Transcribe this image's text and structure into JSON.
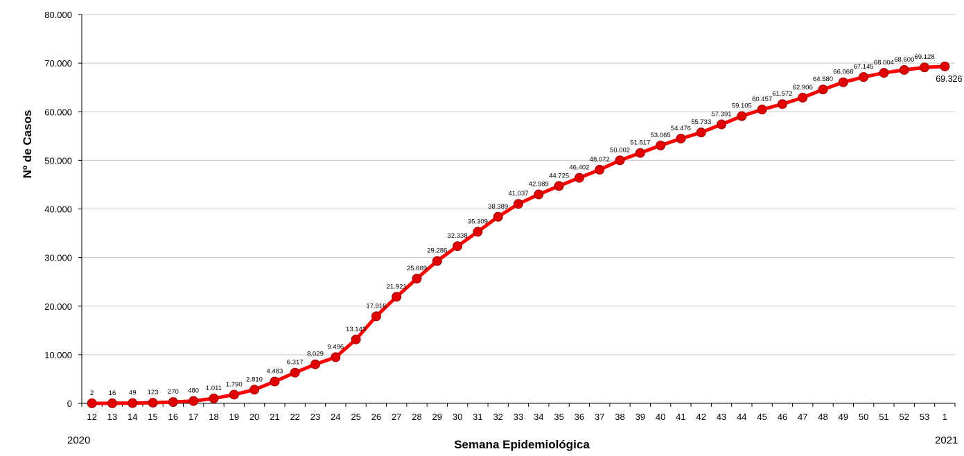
{
  "chart_data": {
    "type": "line",
    "ylabel": "Nº de Casos",
    "xlabel": "Semana Epidemiológica",
    "year_start_label": "2020",
    "year_end_label": "2021",
    "ylim": [
      0,
      80000
    ],
    "ytick_values": [
      0,
      10000,
      20000,
      30000,
      40000,
      50000,
      60000,
      70000,
      80000
    ],
    "ytick_labels": [
      "0",
      "10.000",
      "20.000",
      "30.000",
      "40.000",
      "50.000",
      "60.000",
      "70.000",
      "80.000"
    ],
    "grid": "horizontal",
    "line_color": "#ff0000",
    "marker_color": "#e00000",
    "categories": [
      "12",
      "13",
      "14",
      "15",
      "16",
      "17",
      "18",
      "19",
      "20",
      "21",
      "22",
      "23",
      "24",
      "25",
      "26",
      "27",
      "28",
      "29",
      "30",
      "31",
      "32",
      "33",
      "34",
      "35",
      "36",
      "37",
      "38",
      "39",
      "40",
      "41",
      "42",
      "43",
      "44",
      "45",
      "46",
      "47",
      "48",
      "49",
      "50",
      "51",
      "52",
      "53",
      "1"
    ],
    "series": [
      {
        "values": [
          2,
          16,
          49,
          123,
          270,
          480,
          1011,
          1790,
          2810,
          4483,
          6317,
          8029,
          9496,
          13143,
          17916,
          21921,
          25669,
          29286,
          32338,
          35309,
          38389,
          41037,
          42989,
          44725,
          46402,
          48072,
          50002,
          51517,
          53065,
          54476,
          55733,
          57391,
          59105,
          60457,
          61572,
          62906,
          64580,
          66068,
          67145,
          68004,
          68600,
          69128,
          69326
        ],
        "labels": [
          "2",
          "16",
          "49",
          "123",
          "270",
          "480",
          "1.011",
          "1.790",
          "2.810",
          "4.483",
          "6.317",
          "8.029",
          "9.496",
          "13.143",
          "17.916",
          "21.921",
          "25.669",
          "29.286",
          "32.338",
          "35.309",
          "38.389",
          "41.037",
          "42.989",
          "44.725",
          "46.402",
          "48.072",
          "50.002",
          "51.517",
          "53.065",
          "54.476",
          "55.733",
          "57.391",
          "59.105",
          "60.457",
          "61.572",
          "62.906",
          "64.580",
          "66.068",
          "67.145",
          "68.004",
          "68.600",
          "69.128",
          "69.326"
        ]
      }
    ]
  }
}
